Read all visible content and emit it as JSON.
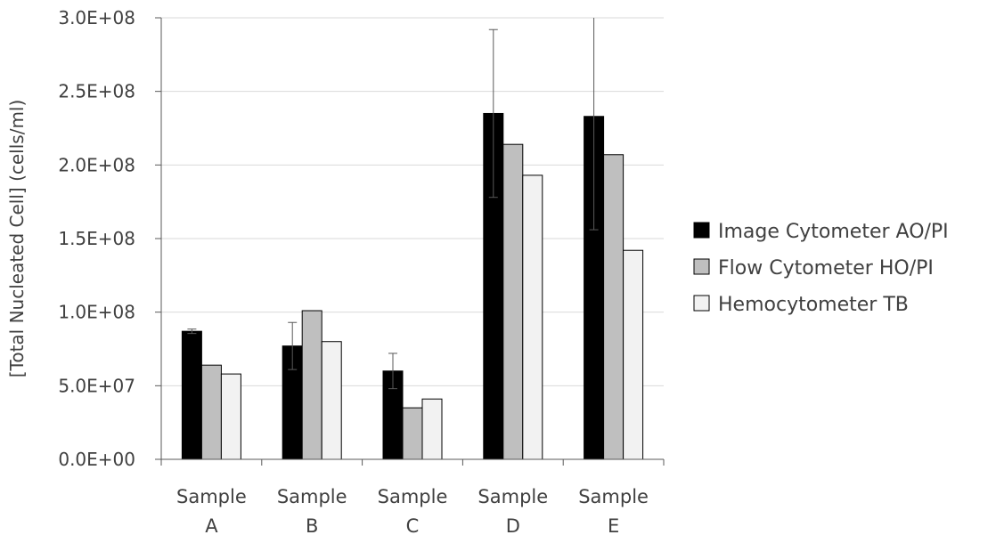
{
  "chart_data": {
    "type": "bar",
    "title": "",
    "xlabel": "",
    "ylabel": "[Total Nucleated Cell] (cells/ml)",
    "categories": [
      [
        "Sample",
        "A"
      ],
      [
        "Sample",
        "B"
      ],
      [
        "Sample",
        "C"
      ],
      [
        "Sample",
        "D"
      ],
      [
        "Sample",
        "E"
      ]
    ],
    "ylim": [
      0,
      300000000
    ],
    "yticks": [
      0,
      50000000,
      100000000,
      150000000,
      200000000,
      250000000,
      300000000
    ],
    "ytick_labels": [
      "0.0E+00",
      "5.0E+07",
      "1.0E+08",
      "1.5E+08",
      "2.0E+08",
      "2.5E+08",
      "3.0E+08"
    ],
    "grid": true,
    "legend_position": "right",
    "series": [
      {
        "name": "Image Cytometer AO/PI",
        "color": "#000000",
        "values": [
          87000000,
          77000000,
          60000000,
          235000000,
          233000000
        ],
        "errors": [
          1500000,
          16000000,
          12000000,
          57000000,
          77000000
        ]
      },
      {
        "name": "Flow Cytometer HO/PI",
        "color": "#bfbfbf",
        "values": [
          64000000,
          101000000,
          35000000,
          214000000,
          207000000
        ]
      },
      {
        "name": "Hemocytometer TB",
        "color": "#f2f2f2",
        "values": [
          58000000,
          80000000,
          41000000,
          193000000,
          142000000
        ]
      }
    ]
  }
}
